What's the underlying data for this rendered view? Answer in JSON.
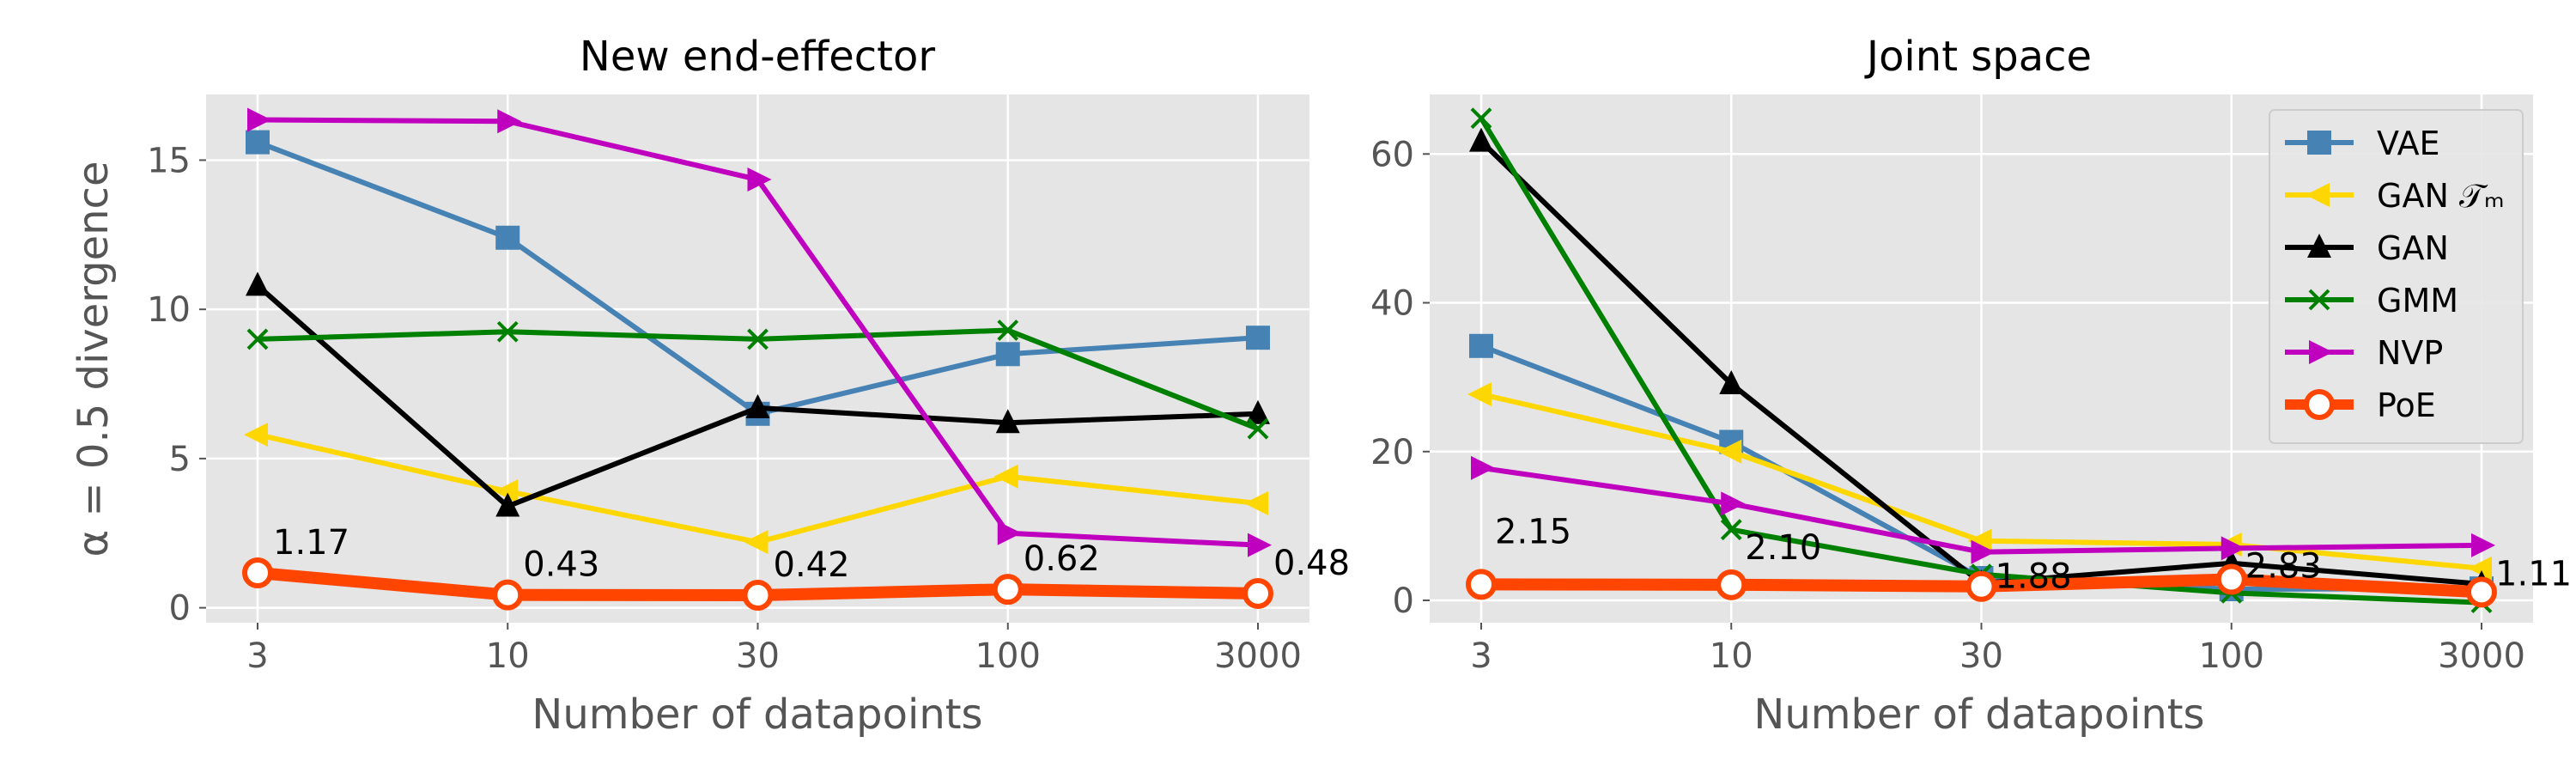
{
  "chart_data": [
    {
      "type": "line",
      "title": "New end-effector",
      "xlabel": "Number of datapoints",
      "ylabel": "α = 0.5 divergence",
      "categories": [
        "3",
        "10",
        "30",
        "100",
        "3000"
      ],
      "ylim": [
        -0.5,
        17.2
      ],
      "yticks": [
        "0",
        "5",
        "10",
        "15"
      ],
      "grid": true,
      "series": [
        {
          "name": "VAE",
          "color": "#4682B4",
          "marker": "square",
          "values": [
            15.6,
            12.4,
            6.5,
            8.5,
            9.05
          ]
        },
        {
          "name": "GAN 𝒯ₘ",
          "color": "#FFD700",
          "marker": "triangle-left",
          "values": [
            5.8,
            3.9,
            2.2,
            4.4,
            3.5
          ]
        },
        {
          "name": "GAN",
          "color": "#000000",
          "marker": "triangle-up",
          "values": [
            10.8,
            3.4,
            6.7,
            6.2,
            6.5
          ]
        },
        {
          "name": "GMM",
          "color": "#008000",
          "marker": "x",
          "values": [
            9.0,
            9.25,
            9.0,
            9.3,
            6.0
          ]
        },
        {
          "name": "NVP",
          "color": "#BF00BF",
          "marker": "triangle-right",
          "values": [
            16.35,
            16.3,
            14.35,
            2.5,
            2.1
          ]
        },
        {
          "name": "PoE",
          "color": "#FF4500",
          "marker": "circle-open",
          "values": [
            1.17,
            0.43,
            0.42,
            0.62,
            0.48
          ]
        }
      ],
      "annotations": [
        "1.17",
        "0.43",
        "0.42",
        "0.62",
        "0.48"
      ]
    },
    {
      "type": "line",
      "title": "Joint space",
      "xlabel": "Number of datapoints",
      "ylabel": "",
      "categories": [
        "3",
        "10",
        "30",
        "100",
        "3000"
      ],
      "ylim": [
        -3,
        68
      ],
      "yticks": [
        "0",
        "20",
        "40",
        "60"
      ],
      "grid": true,
      "legend": "top-right",
      "series": [
        {
          "name": "VAE",
          "color": "#4682B4",
          "marker": "square",
          "values": [
            34.2,
            21.3,
            3.0,
            1.5,
            1.6
          ]
        },
        {
          "name": "GAN 𝒯ₘ",
          "color": "#FFD700",
          "marker": "triangle-left",
          "values": [
            27.7,
            20.0,
            8.0,
            7.5,
            4.3
          ]
        },
        {
          "name": "GAN",
          "color": "#000000",
          "marker": "triangle-up",
          "values": [
            61.7,
            29.1,
            2.3,
            5.0,
            2.2
          ]
        },
        {
          "name": "GMM",
          "color": "#008000",
          "marker": "x",
          "values": [
            64.8,
            9.5,
            3.5,
            1.0,
            -0.3
          ]
        },
        {
          "name": "NVP",
          "color": "#BF00BF",
          "marker": "triangle-right",
          "values": [
            17.8,
            13.0,
            6.5,
            7.0,
            7.4
          ]
        },
        {
          "name": "PoE",
          "color": "#FF4500",
          "marker": "circle-open",
          "values": [
            2.15,
            2.1,
            1.88,
            2.83,
            1.11
          ]
        }
      ],
      "annotations": [
        "2.15",
        "2.10",
        "1.88",
        "2.83",
        "1.11"
      ]
    }
  ]
}
